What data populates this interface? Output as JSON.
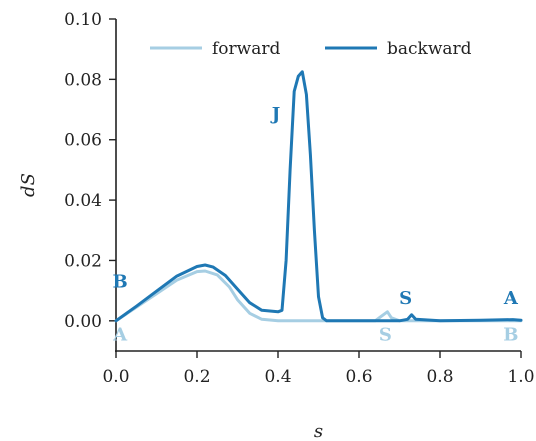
{
  "chart_data": {
    "type": "line",
    "xlabel": "s",
    "ylabel": "dS",
    "xlim": [
      0.0,
      1.0
    ],
    "ylim": [
      -0.01,
      0.1
    ],
    "xticks": [
      "0.0",
      "0.2",
      "0.4",
      "0.6",
      "0.8",
      "1.0"
    ],
    "yticks": [
      "0.00",
      "0.02",
      "0.04",
      "0.06",
      "0.08",
      "0.10"
    ],
    "legend_position": "top",
    "grid": false,
    "series": [
      {
        "name": "forward",
        "color": "#a6cee3",
        "x": [
          0.0,
          0.05,
          0.1,
          0.15,
          0.2,
          0.22,
          0.25,
          0.28,
          0.3,
          0.33,
          0.36,
          0.4,
          0.45,
          0.5,
          0.55,
          0.6,
          0.64,
          0.66,
          0.67,
          0.68,
          0.7,
          0.75,
          0.8,
          0.9,
          1.0
        ],
        "y": [
          0.0,
          0.0045,
          0.009,
          0.0135,
          0.0163,
          0.0165,
          0.0152,
          0.0112,
          0.007,
          0.0025,
          0.0005,
          0.0,
          0.0,
          0.0,
          0.0,
          0.0,
          0.0,
          0.002,
          0.003,
          0.001,
          0.0,
          0.0,
          0.0,
          0.0,
          0.0
        ]
      },
      {
        "name": "backward",
        "color": "#1f78b4",
        "x": [
          0.0,
          0.05,
          0.1,
          0.15,
          0.2,
          0.22,
          0.24,
          0.27,
          0.3,
          0.33,
          0.36,
          0.4,
          0.41,
          0.42,
          0.43,
          0.44,
          0.45,
          0.46,
          0.47,
          0.48,
          0.49,
          0.5,
          0.51,
          0.52,
          0.55,
          0.6,
          0.7,
          0.72,
          0.73,
          0.74,
          0.8,
          0.9,
          0.98,
          1.0
        ],
        "y": [
          0.0,
          0.0048,
          0.0098,
          0.0148,
          0.018,
          0.0185,
          0.0178,
          0.015,
          0.0105,
          0.006,
          0.0035,
          0.003,
          0.0035,
          0.02,
          0.05,
          0.076,
          0.081,
          0.0825,
          0.075,
          0.055,
          0.03,
          0.008,
          0.001,
          0.0,
          0.0,
          0.0,
          0.0,
          0.0005,
          0.002,
          0.0005,
          0.0,
          0.0002,
          0.0004,
          0.0002
        ]
      }
    ],
    "annotations": [
      {
        "text": "B",
        "x": 0.01,
        "y": 0.011,
        "series": "backward"
      },
      {
        "text": "A",
        "x": 0.01,
        "y": -0.0065,
        "series": "forward"
      },
      {
        "text": "J",
        "x": 0.395,
        "y": 0.0665,
        "series": "backward"
      },
      {
        "text": "S",
        "x": 0.715,
        "y": 0.0055,
        "series": "backward"
      },
      {
        "text": "S",
        "x": 0.665,
        "y": -0.0065,
        "series": "forward"
      },
      {
        "text": "A",
        "x": 0.975,
        "y": 0.0055,
        "series": "backward"
      },
      {
        "text": "B",
        "x": 0.975,
        "y": -0.0065,
        "series": "forward"
      }
    ]
  }
}
